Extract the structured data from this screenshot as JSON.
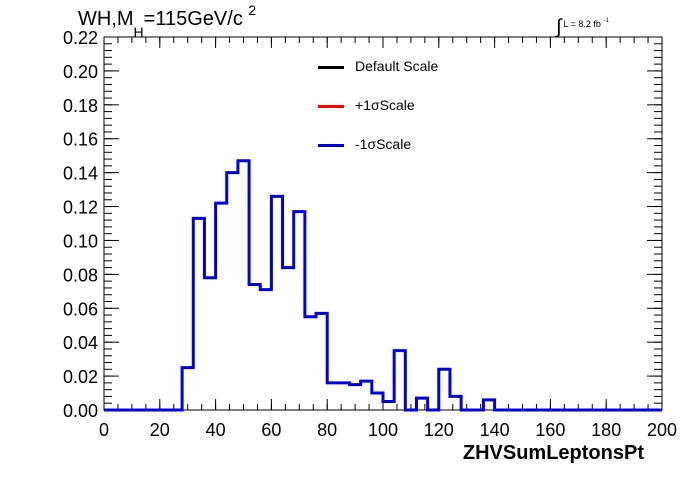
{
  "header": {
    "title_prefix": "WH,M",
    "title_sub": "H",
    "title_mid": "=115GeV/c",
    "title_sup": "2",
    "lumi_integral": "∫",
    "lumi_text": "L = 8.2 fb",
    "lumi_sup": "-1"
  },
  "legend": {
    "entries": [
      {
        "label": "Default Scale",
        "color": "#000000"
      },
      {
        "label": "+1σScale",
        "color": "#ff0000"
      },
      {
        "label": "-1σScale",
        "color": "#0000dd"
      }
    ]
  },
  "chart_data": {
    "type": "line",
    "title": "WH,M_H=115GeV/c^2",
    "xlabel": "ZHVSumLeptonsPt",
    "ylabel": "",
    "xlim": [
      0,
      200
    ],
    "ylim": [
      0,
      0.22
    ],
    "x_ticks": [
      "0",
      "20",
      "40",
      "60",
      "80",
      "100",
      "120",
      "140",
      "160",
      "180",
      "200"
    ],
    "y_ticks": [
      "0.00",
      "0.02",
      "0.04",
      "0.06",
      "0.08",
      "0.10",
      "0.12",
      "0.14",
      "0.16",
      "0.18",
      "0.20",
      "0.22"
    ],
    "bin_width": 4,
    "bin_lower_edges": [
      0,
      4,
      8,
      12,
      16,
      20,
      24,
      28,
      32,
      36,
      40,
      44,
      48,
      52,
      56,
      60,
      64,
      68,
      72,
      76,
      80,
      84,
      88,
      92,
      96,
      100,
      104,
      108,
      112,
      116,
      120,
      124,
      128,
      132,
      136,
      140,
      144,
      148,
      152,
      156,
      160,
      164,
      168,
      172,
      176,
      180,
      184,
      188,
      192,
      196
    ],
    "series": [
      {
        "name": "-1σScale",
        "color": "#0000dd",
        "values": [
          0,
          0,
          0,
          0,
          0,
          0,
          0,
          0.025,
          0.113,
          0.078,
          0.122,
          0.14,
          0.147,
          0.074,
          0.071,
          0.126,
          0.084,
          0.117,
          0.055,
          0.057,
          0.016,
          0.016,
          0.015,
          0.017,
          0.01,
          0.005,
          0.035,
          0,
          0.007,
          0,
          0.024,
          0.008,
          0,
          0,
          0.006,
          0,
          0,
          0,
          0,
          0,
          0,
          0,
          0,
          0,
          0,
          0,
          0,
          0,
          0,
          0
        ]
      }
    ],
    "grid": false,
    "legend_position": "top-center"
  }
}
